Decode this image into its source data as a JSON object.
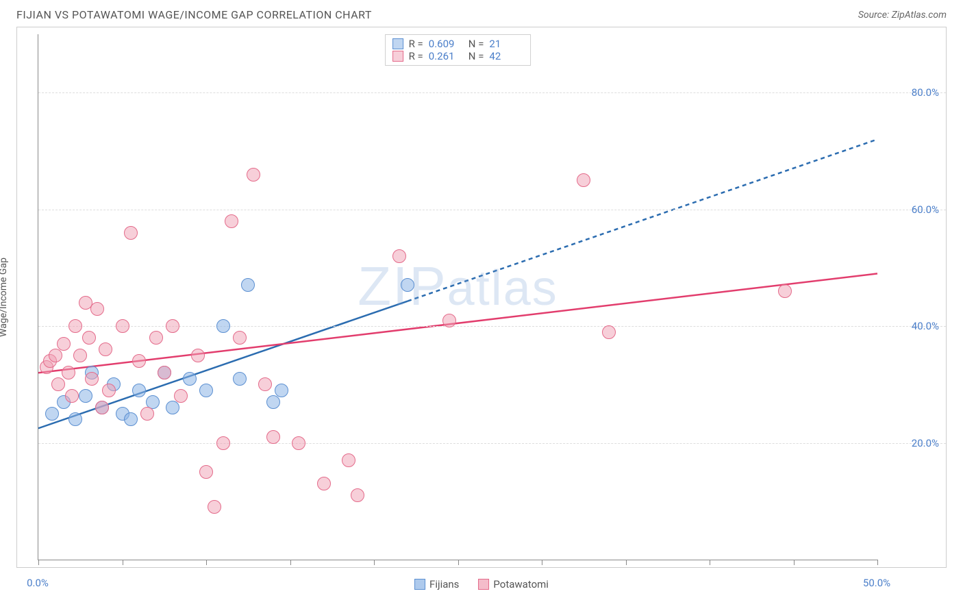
{
  "title": "FIJIAN VS POTAWATOMI WAGE/INCOME GAP CORRELATION CHART",
  "source_label": "Source: ZipAtlas.com",
  "y_axis_label": "Wage/Income Gap",
  "watermark": "ZIPatlas",
  "chart": {
    "type": "scatter",
    "background_color": "#ffffff",
    "grid_color": "#dddddd",
    "grid_dash": "4,4",
    "border_color": "#cccccc",
    "axis_color": "#888888",
    "tick_label_color": "#4a7ec9",
    "tick_label_fontsize": 15,
    "xlim": [
      0,
      50
    ],
    "ylim": [
      0,
      90
    ],
    "x_ticks": [
      0,
      5,
      10,
      15,
      20,
      25,
      30,
      35,
      40,
      45,
      50
    ],
    "x_tick_labels": {
      "0": "0.0%",
      "50": "50.0%"
    },
    "y_ticks": [
      20,
      40,
      60,
      80
    ],
    "y_tick_labels": {
      "20": "20.0%",
      "40": "40.0%",
      "60": "60.0%",
      "80": "80.0%"
    },
    "series": [
      {
        "name": "Fijians",
        "marker_fill": "rgba(140,180,230,0.55)",
        "marker_stroke": "#5b8fd1",
        "marker_radius": 10,
        "trend_color": "#2b6cb0",
        "trend_width": 2.5,
        "trend_solid_until_x": 22,
        "trend_dash": "6,5",
        "trend": {
          "x1": 0,
          "y1": 22.5,
          "x2": 50,
          "y2": 72
        },
        "stats": {
          "R": "0.609",
          "N": "21"
        },
        "points": [
          [
            0.8,
            25
          ],
          [
            1.5,
            27
          ],
          [
            2.2,
            24
          ],
          [
            2.8,
            28
          ],
          [
            3.2,
            32
          ],
          [
            3.8,
            26
          ],
          [
            4.5,
            30
          ],
          [
            5.0,
            25
          ],
          [
            5.5,
            24
          ],
          [
            6.0,
            29
          ],
          [
            6.8,
            27
          ],
          [
            7.5,
            32
          ],
          [
            8.0,
            26
          ],
          [
            9.0,
            31
          ],
          [
            10.0,
            29
          ],
          [
            11.0,
            40
          ],
          [
            12.0,
            31
          ],
          [
            12.5,
            47
          ],
          [
            14.0,
            27
          ],
          [
            14.5,
            29
          ],
          [
            22.0,
            47
          ]
        ]
      },
      {
        "name": "Potawatomi",
        "marker_fill": "rgba(240,160,180,0.5)",
        "marker_stroke": "#e46a8a",
        "marker_radius": 10,
        "trend_color": "#e23d6d",
        "trend_width": 2.5,
        "trend_solid_until_x": 50,
        "trend_dash": "none",
        "trend": {
          "x1": 0,
          "y1": 32,
          "x2": 50,
          "y2": 49
        },
        "stats": {
          "R": "0.261",
          "N": "42"
        },
        "points": [
          [
            0.5,
            33
          ],
          [
            0.7,
            34
          ],
          [
            1.0,
            35
          ],
          [
            1.2,
            30
          ],
          [
            1.5,
            37
          ],
          [
            1.8,
            32
          ],
          [
            2.0,
            28
          ],
          [
            2.2,
            40
          ],
          [
            2.5,
            35
          ],
          [
            2.8,
            44
          ],
          [
            3.0,
            38
          ],
          [
            3.2,
            31
          ],
          [
            3.5,
            43
          ],
          [
            4.0,
            36
          ],
          [
            4.2,
            29
          ],
          [
            5.0,
            40
          ],
          [
            5.5,
            56
          ],
          [
            6.0,
            34
          ],
          [
            6.5,
            25
          ],
          [
            7.0,
            38
          ],
          [
            7.5,
            32
          ],
          [
            8.0,
            40
          ],
          [
            8.5,
            28
          ],
          [
            9.5,
            35
          ],
          [
            10.0,
            15
          ],
          [
            10.5,
            9
          ],
          [
            11.0,
            20
          ],
          [
            11.5,
            58
          ],
          [
            12.0,
            38
          ],
          [
            12.8,
            66
          ],
          [
            13.5,
            30
          ],
          [
            14.0,
            21
          ],
          [
            15.5,
            20
          ],
          [
            17.0,
            13
          ],
          [
            18.5,
            17
          ],
          [
            19.0,
            11
          ],
          [
            21.5,
            52
          ],
          [
            24.5,
            41
          ],
          [
            32.5,
            65
          ],
          [
            34.0,
            39
          ],
          [
            44.5,
            46
          ],
          [
            3.8,
            26
          ]
        ]
      }
    ]
  },
  "legend_bottom": [
    {
      "label": "Fijians",
      "fill": "rgba(140,180,230,0.7)",
      "stroke": "#5b8fd1"
    },
    {
      "label": "Potawatomi",
      "fill": "rgba(240,160,180,0.7)",
      "stroke": "#e46a8a"
    }
  ],
  "legend_top_labels": {
    "R": "R =",
    "N": "N ="
  }
}
